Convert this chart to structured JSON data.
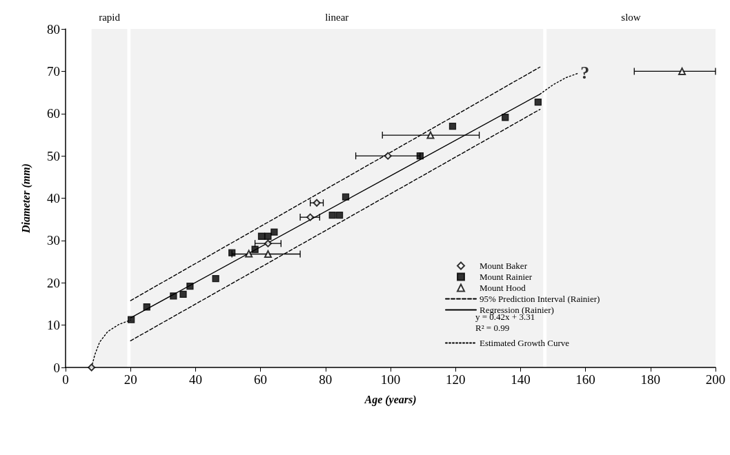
{
  "chart_data": {
    "type": "scatter",
    "xlabel": "Age (years)",
    "ylabel": "Diameter (mm)",
    "xlim": [
      0,
      200
    ],
    "xticks": [
      0,
      20,
      40,
      60,
      80,
      100,
      120,
      140,
      160,
      180,
      200
    ],
    "ylim": [
      0,
      80
    ],
    "yticks": [
      0,
      10,
      20,
      30,
      40,
      50,
      60,
      70,
      80
    ],
    "grid": false,
    "legend": "right",
    "series": [
      {
        "name": "Mount Baker",
        "marker": "diamond",
        "color": "#000000",
        "x": [
          8,
          62.3,
          75.3,
          77.3,
          99.2
        ],
        "values": [
          0,
          29.3,
          35.5,
          38.9,
          50
        ],
        "xerrors": [
          null,
          [
            58.3,
            66.3
          ],
          [
            72.2,
            78.2
          ],
          [
            75.3,
            79.3
          ],
          [
            89.3,
            109.1
          ]
        ]
      },
      {
        "name": "Mount Rainier",
        "marker": "square",
        "color": "#000000",
        "x": [
          20.2,
          25,
          33.2,
          36.2,
          38.3,
          46.2,
          51.2,
          58.3,
          60.3,
          62.3,
          64.2,
          82.1,
          84.3,
          86.2,
          109.1,
          119.1,
          135.3,
          145.4
        ],
        "values": [
          11.3,
          14.3,
          16.9,
          17.3,
          19.2,
          21,
          27.1,
          27.9,
          31,
          31,
          32,
          36,
          36,
          40.3,
          50,
          57,
          59.1,
          62.7
        ]
      },
      {
        "name": "Mount Hood",
        "marker": "triangle",
        "color": "#000000",
        "x": [
          56.4,
          62.3,
          112.3,
          189.7
        ],
        "values": [
          26.9,
          26.8,
          54.9,
          70
        ],
        "xerrors": [
          null,
          [
            51.2,
            72.2
          ],
          [
            97.5,
            127.3
          ],
          [
            175,
            200
          ]
        ]
      },
      {
        "name": "95% Prediction Interval (Rainier)",
        "type": "line",
        "marker": "none",
        "line_style": "dashed",
        "color": "#000000",
        "x": [
          20,
          146
        ],
        "values": [
          15.8,
          71
        ]
      },
      {
        "type": "line",
        "marker": "none",
        "line_style": "dashed",
        "color": "#000000",
        "x": [
          20,
          146
        ],
        "values": [
          6.3,
          61
        ]
      },
      {
        "name": "Regression (Rainier)",
        "type": "line",
        "marker": "none",
        "line_style": "solid",
        "color": "#000000",
        "x": [
          20,
          146
        ],
        "values": [
          11.7,
          64.6
        ]
      },
      {
        "name": "Estimated Growth Curve",
        "type": "line",
        "marker": "none",
        "line_style": "dotted",
        "color": "#000000",
        "x": [
          8,
          9,
          10.5,
          13,
          16.5,
          20
        ],
        "values": [
          0,
          3,
          6,
          8.5,
          10.2,
          11.2
        ]
      },
      {
        "type": "line",
        "marker": "none",
        "line_style": "dotted",
        "color": "#000000",
        "x": [
          146,
          150,
          154,
          158
        ],
        "values": [
          64.6,
          66.8,
          68.5,
          69.6
        ]
      }
    ],
    "bands": [
      {
        "axis": "x",
        "from": 8,
        "to": 19,
        "label": "rapid"
      },
      {
        "axis": "x",
        "from": 20,
        "to": 147,
        "label": "linear"
      },
      {
        "axis": "x",
        "from": 148,
        "to": 200,
        "label": "slow"
      }
    ],
    "annotations": [
      "y = 0.42x + 3.31",
      "R² = 0.99",
      {
        "text": "?",
        "x": 158,
        "y": 69.6
      }
    ]
  }
}
